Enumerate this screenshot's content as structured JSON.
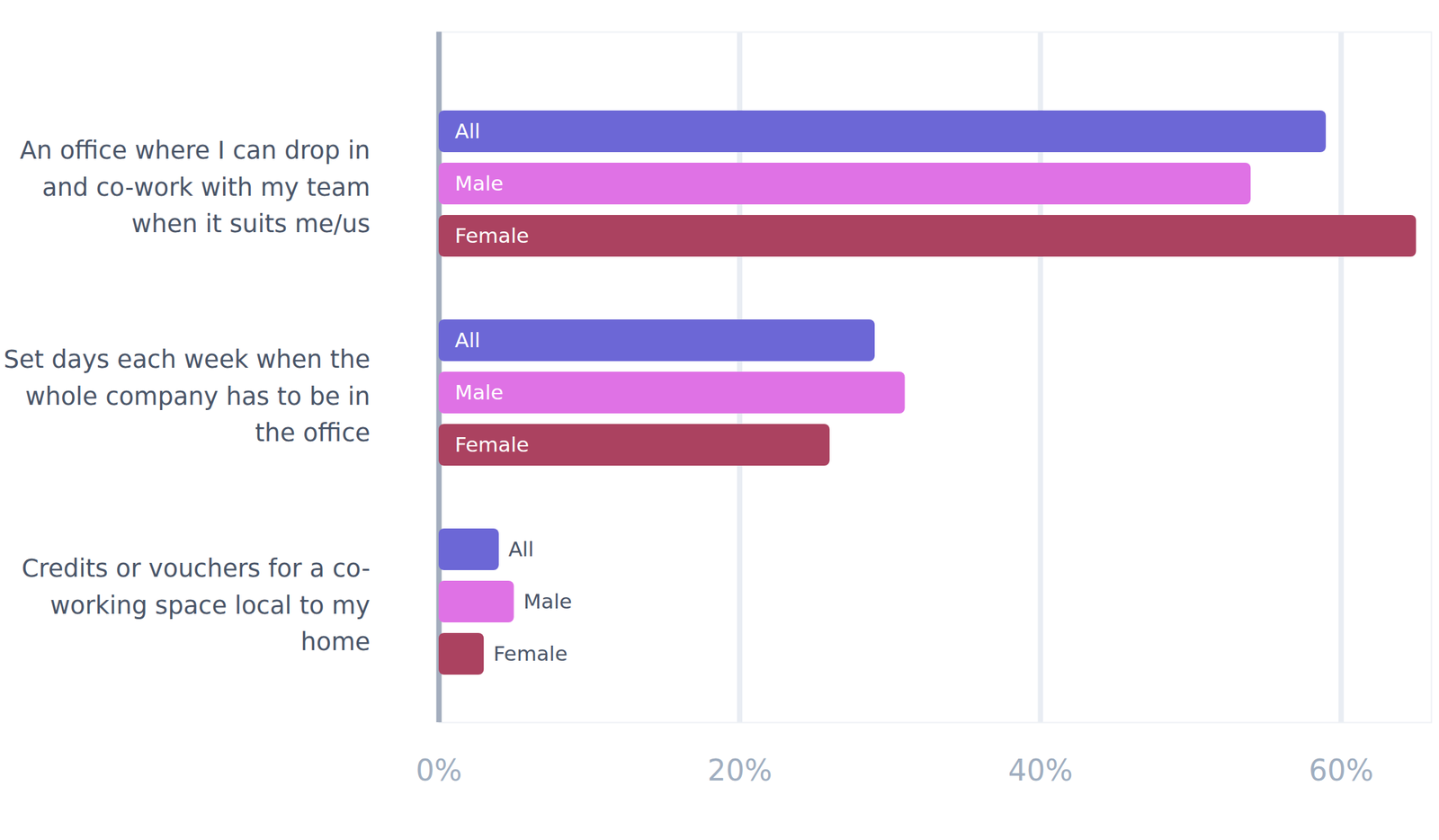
{
  "chart_data": {
    "type": "bar",
    "orientation": "horizontal",
    "categories": [
      "An office where I can drop in and co-work with my team when it suits me/us",
      "Set days each week when the whole company has to be in the office",
      "Credits or vouchers for a co-working space local to my home"
    ],
    "series": [
      {
        "name": "All",
        "color": "#6c67d6",
        "values": [
          59,
          29,
          4
        ]
      },
      {
        "name": "Male",
        "color": "#df72e5",
        "values": [
          54,
          31,
          5
        ]
      },
      {
        "name": "Female",
        "color": "#ab4260",
        "values": [
          65,
          26,
          3
        ]
      }
    ],
    "xlim": [
      0,
      66
    ],
    "xticks": [
      {
        "value": 0,
        "label": "0%"
      },
      {
        "value": 20,
        "label": "20%"
      },
      {
        "value": 40,
        "label": "40%"
      },
      {
        "value": 60,
        "label": "60%"
      }
    ],
    "grid": true
  }
}
